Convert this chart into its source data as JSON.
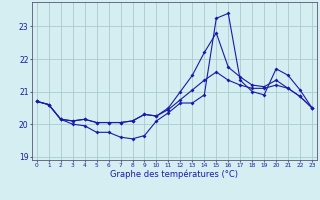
{
  "xlabel": "Graphe des températures (°C)",
  "bg_color": "#d4eef2",
  "grid_color": "#aacccc",
  "line_color": "#1a1aaa",
  "hours": [
    0,
    1,
    2,
    3,
    4,
    5,
    6,
    7,
    8,
    9,
    10,
    11,
    12,
    13,
    14,
    15,
    16,
    17,
    18,
    19,
    20,
    21,
    22,
    23
  ],
  "line1": [
    20.7,
    20.6,
    20.15,
    20.0,
    19.95,
    19.75,
    19.75,
    19.6,
    19.55,
    19.65,
    20.1,
    20.35,
    20.65,
    20.65,
    20.9,
    23.25,
    23.4,
    21.35,
    21.0,
    20.9,
    21.7,
    21.5,
    21.05,
    20.5
  ],
  "line2": [
    20.7,
    20.6,
    20.15,
    20.1,
    20.15,
    20.05,
    20.05,
    20.05,
    20.1,
    20.3,
    20.25,
    20.5,
    21.0,
    21.5,
    22.2,
    22.8,
    21.75,
    21.45,
    21.2,
    21.15,
    21.35,
    21.1,
    20.85,
    20.5
  ],
  "line3": [
    20.7,
    20.6,
    20.15,
    20.1,
    20.15,
    20.05,
    20.05,
    20.05,
    20.1,
    20.3,
    20.25,
    20.45,
    20.75,
    21.05,
    21.35,
    21.6,
    21.35,
    21.2,
    21.1,
    21.1,
    21.2,
    21.1,
    20.85,
    20.5
  ],
  "ylim": [
    18.9,
    23.75
  ],
  "yticks": [
    19,
    20,
    21,
    22,
    23
  ],
  "xlim": [
    -0.4,
    23.4
  ],
  "xtick_labels": [
    "0",
    "1",
    "2",
    "3",
    "4",
    "5",
    "6",
    "7",
    "8",
    "9",
    "10",
    "11",
    "12",
    "13",
    "14",
    "15",
    "16",
    "17",
    "18",
    "19",
    "20",
    "21",
    "22",
    "23"
  ]
}
